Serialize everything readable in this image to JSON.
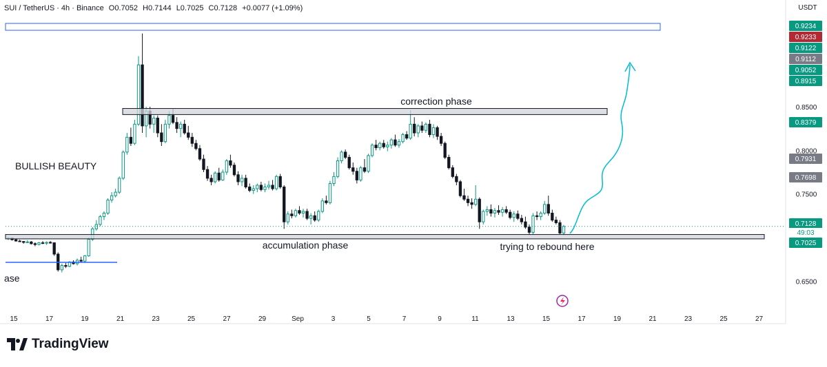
{
  "header": {
    "symbol": "SUI / TetherUS · 4h · Binance",
    "open": "O0.7052",
    "high": "H0.7144",
    "low": "L0.7025",
    "close": "C0.7128",
    "change": "+0.0077 (+1.09%)"
  },
  "brand": {
    "name": "TradingView",
    "icon": "tradingview-logo-icon"
  },
  "chart_data": {
    "type": "candlestick",
    "currency": "USDT",
    "x_axis_ticks": [
      "15",
      "17",
      "19",
      "21",
      "23",
      "25",
      "27",
      "29",
      "Sep",
      "3",
      "5",
      "7",
      "9",
      "11",
      "13",
      "15",
      "17",
      "19",
      "21",
      "23",
      "25",
      "27"
    ],
    "y_axis_ticks": [
      "0.8500",
      "0.8000",
      "0.7500",
      "0.6500"
    ],
    "ylim": [
      0.625,
      0.955
    ],
    "price_tags": [
      {
        "value": "0.9234",
        "color": "#089981"
      },
      {
        "value": "0.9233",
        "color": "#b22833"
      },
      {
        "value": "0.9122",
        "color": "#089981"
      },
      {
        "value": "0.9112",
        "color": "#787b86"
      },
      {
        "value": "0.9052",
        "color": "#089981"
      },
      {
        "value": "0.8915",
        "color": "#089981"
      },
      {
        "value": "0.8379",
        "color": "#089981"
      },
      {
        "value": "0.7931",
        "color": "#787b86"
      },
      {
        "value": "0.7698",
        "color": "#787b86"
      },
      {
        "value": "0.7128",
        "color": "#089981"
      },
      {
        "value": "49:03",
        "color": "#089981"
      },
      {
        "value": "0.7025",
        "color": "#089981"
      }
    ],
    "zones": [
      {
        "label": "correction phase",
        "low": 0.841,
        "high": 0.848
      },
      {
        "label": "accumulation phase",
        "low": 0.6985,
        "high": 0.7035
      },
      {
        "label": "trying to rebound here",
        "low": 0.6985,
        "high": 0.7035
      }
    ],
    "annotations": [
      "BULLISH BEAUTY",
      "ase",
      "correction phase",
      "accumulation phase",
      "trying to rebound here"
    ],
    "candles": [
      [
        0.699,
        0.701,
        0.697,
        0.6995
      ],
      [
        0.6995,
        0.7,
        0.6965,
        0.6975
      ],
      [
        0.6975,
        0.699,
        0.6955,
        0.696
      ],
      [
        0.696,
        0.6975,
        0.695,
        0.6955
      ],
      [
        0.6955,
        0.696,
        0.693,
        0.6945
      ],
      [
        0.6945,
        0.697,
        0.6935,
        0.695
      ],
      [
        0.695,
        0.696,
        0.692,
        0.693
      ],
      [
        0.693,
        0.6945,
        0.69,
        0.692
      ],
      [
        0.692,
        0.695,
        0.691,
        0.694
      ],
      [
        0.694,
        0.696,
        0.6925,
        0.6935
      ],
      [
        0.6935,
        0.6955,
        0.6915,
        0.6945
      ],
      [
        0.6945,
        0.696,
        0.693,
        0.694
      ],
      [
        0.694,
        0.6945,
        0.679,
        0.681
      ],
      [
        0.681,
        0.683,
        0.661,
        0.663
      ],
      [
        0.663,
        0.67,
        0.66,
        0.668
      ],
      [
        0.668,
        0.671,
        0.665,
        0.667
      ],
      [
        0.667,
        0.673,
        0.666,
        0.672
      ],
      [
        0.672,
        0.674,
        0.669,
        0.67
      ],
      [
        0.67,
        0.676,
        0.668,
        0.674
      ],
      [
        0.674,
        0.678,
        0.672,
        0.673
      ],
      [
        0.673,
        0.68,
        0.671,
        0.679
      ],
      [
        0.679,
        0.7,
        0.678,
        0.698
      ],
      [
        0.698,
        0.712,
        0.696,
        0.71
      ],
      [
        0.71,
        0.72,
        0.708,
        0.715
      ],
      [
        0.715,
        0.726,
        0.713,
        0.724
      ],
      [
        0.724,
        0.73,
        0.72,
        0.728
      ],
      [
        0.728,
        0.745,
        0.726,
        0.743
      ],
      [
        0.743,
        0.752,
        0.74,
        0.748
      ],
      [
        0.748,
        0.756,
        0.746,
        0.752
      ],
      [
        0.752,
        0.77,
        0.75,
        0.768
      ],
      [
        0.768,
        0.8,
        0.766,
        0.798
      ],
      [
        0.798,
        0.82,
        0.795,
        0.815
      ],
      [
        0.815,
        0.826,
        0.805,
        0.808
      ],
      [
        0.808,
        0.835,
        0.806,
        0.83
      ],
      [
        0.83,
        0.908,
        0.828,
        0.898
      ],
      [
        0.898,
        0.934,
        0.82,
        0.828
      ],
      [
        0.828,
        0.85,
        0.815,
        0.845
      ],
      [
        0.845,
        0.85,
        0.825,
        0.83
      ],
      [
        0.83,
        0.84,
        0.82,
        0.837
      ],
      [
        0.837,
        0.84,
        0.815,
        0.82
      ],
      [
        0.82,
        0.83,
        0.805,
        0.81
      ],
      [
        0.81,
        0.835,
        0.808,
        0.83
      ],
      [
        0.83,
        0.845,
        0.825,
        0.84
      ],
      [
        0.84,
        0.848,
        0.83,
        0.832
      ],
      [
        0.832,
        0.838,
        0.82,
        0.825
      ],
      [
        0.825,
        0.833,
        0.815,
        0.83
      ],
      [
        0.83,
        0.835,
        0.818,
        0.82
      ],
      [
        0.82,
        0.828,
        0.812,
        0.815
      ],
      [
        0.815,
        0.82,
        0.804,
        0.808
      ],
      [
        0.808,
        0.812,
        0.8,
        0.802
      ],
      [
        0.802,
        0.806,
        0.788,
        0.79
      ],
      [
        0.79,
        0.795,
        0.775,
        0.778
      ],
      [
        0.778,
        0.782,
        0.765,
        0.768
      ],
      [
        0.768,
        0.772,
        0.76,
        0.764
      ],
      [
        0.764,
        0.776,
        0.762,
        0.774
      ],
      [
        0.774,
        0.78,
        0.764,
        0.766
      ],
      [
        0.766,
        0.778,
        0.765,
        0.775
      ],
      [
        0.775,
        0.79,
        0.772,
        0.788
      ],
      [
        0.788,
        0.795,
        0.78,
        0.783
      ],
      [
        0.783,
        0.786,
        0.77,
        0.772
      ],
      [
        0.772,
        0.776,
        0.76,
        0.764
      ],
      [
        0.764,
        0.772,
        0.759,
        0.768
      ],
      [
        0.768,
        0.772,
        0.756,
        0.758
      ],
      [
        0.758,
        0.762,
        0.752,
        0.754
      ],
      [
        0.754,
        0.76,
        0.75,
        0.756
      ],
      [
        0.756,
        0.762,
        0.752,
        0.76
      ],
      [
        0.76,
        0.764,
        0.753,
        0.755
      ],
      [
        0.755,
        0.762,
        0.752,
        0.758
      ],
      [
        0.758,
        0.765,
        0.755,
        0.76
      ],
      [
        0.76,
        0.766,
        0.754,
        0.756
      ],
      [
        0.756,
        0.772,
        0.754,
        0.77
      ],
      [
        0.77,
        0.773,
        0.756,
        0.758
      ],
      [
        0.758,
        0.76,
        0.71,
        0.718
      ],
      [
        0.718,
        0.73,
        0.715,
        0.727
      ],
      [
        0.727,
        0.732,
        0.722,
        0.725
      ],
      [
        0.725,
        0.733,
        0.723,
        0.731
      ],
      [
        0.731,
        0.736,
        0.726,
        0.728
      ],
      [
        0.728,
        0.733,
        0.723,
        0.73
      ],
      [
        0.73,
        0.733,
        0.72,
        0.722
      ],
      [
        0.722,
        0.728,
        0.715,
        0.725
      ],
      [
        0.725,
        0.73,
        0.718,
        0.72
      ],
      [
        0.72,
        0.732,
        0.718,
        0.73
      ],
      [
        0.73,
        0.745,
        0.728,
        0.742
      ],
      [
        0.742,
        0.748,
        0.738,
        0.74
      ],
      [
        0.74,
        0.765,
        0.738,
        0.762
      ],
      [
        0.762,
        0.775,
        0.759,
        0.77
      ],
      [
        0.77,
        0.792,
        0.768,
        0.788
      ],
      [
        0.788,
        0.8,
        0.785,
        0.798
      ],
      [
        0.798,
        0.801,
        0.79,
        0.792
      ],
      [
        0.792,
        0.795,
        0.778,
        0.78
      ],
      [
        0.78,
        0.786,
        0.772,
        0.776
      ],
      [
        0.776,
        0.78,
        0.762,
        0.766
      ],
      [
        0.766,
        0.782,
        0.764,
        0.78
      ],
      [
        0.78,
        0.79,
        0.774,
        0.776
      ],
      [
        0.776,
        0.796,
        0.774,
        0.794
      ],
      [
        0.794,
        0.808,
        0.792,
        0.806
      ],
      [
        0.806,
        0.812,
        0.8,
        0.803
      ],
      [
        0.803,
        0.81,
        0.8,
        0.808
      ],
      [
        0.808,
        0.812,
        0.802,
        0.804
      ],
      [
        0.804,
        0.81,
        0.799,
        0.806
      ],
      [
        0.806,
        0.814,
        0.802,
        0.812
      ],
      [
        0.812,
        0.818,
        0.804,
        0.806
      ],
      [
        0.806,
        0.813,
        0.803,
        0.81
      ],
      [
        0.81,
        0.82,
        0.808,
        0.818
      ],
      [
        0.818,
        0.822,
        0.812,
        0.814
      ],
      [
        0.814,
        0.846,
        0.812,
        0.83
      ],
      [
        0.83,
        0.838,
        0.816,
        0.82
      ],
      [
        0.82,
        0.83,
        0.815,
        0.828
      ],
      [
        0.828,
        0.833,
        0.82,
        0.823
      ],
      [
        0.823,
        0.832,
        0.82,
        0.83
      ],
      [
        0.83,
        0.835,
        0.815,
        0.818
      ],
      [
        0.818,
        0.83,
        0.814,
        0.826
      ],
      [
        0.826,
        0.828,
        0.812,
        0.816
      ],
      [
        0.816,
        0.82,
        0.805,
        0.808
      ],
      [
        0.808,
        0.81,
        0.79,
        0.792
      ],
      [
        0.792,
        0.795,
        0.778,
        0.78
      ],
      [
        0.78,
        0.783,
        0.768,
        0.77
      ],
      [
        0.77,
        0.773,
        0.76,
        0.764
      ],
      [
        0.764,
        0.766,
        0.746,
        0.748
      ],
      [
        0.748,
        0.756,
        0.742,
        0.744
      ],
      [
        0.744,
        0.748,
        0.736,
        0.74
      ],
      [
        0.74,
        0.745,
        0.733,
        0.738
      ],
      [
        0.738,
        0.76,
        0.736,
        0.744
      ],
      [
        0.744,
        0.746,
        0.71,
        0.718
      ],
      [
        0.718,
        0.732,
        0.715,
        0.73
      ],
      [
        0.73,
        0.736,
        0.725,
        0.732
      ],
      [
        0.732,
        0.738,
        0.724,
        0.728
      ],
      [
        0.728,
        0.734,
        0.723,
        0.731
      ],
      [
        0.731,
        0.737,
        0.726,
        0.729
      ],
      [
        0.729,
        0.735,
        0.724,
        0.732
      ],
      [
        0.732,
        0.736,
        0.727,
        0.729
      ],
      [
        0.729,
        0.732,
        0.721,
        0.723
      ],
      [
        0.723,
        0.73,
        0.718,
        0.727
      ],
      [
        0.727,
        0.731,
        0.72,
        0.722
      ],
      [
        0.722,
        0.726,
        0.715,
        0.718
      ],
      [
        0.718,
        0.724,
        0.71,
        0.712
      ],
      [
        0.712,
        0.715,
        0.703,
        0.706
      ],
      [
        0.706,
        0.728,
        0.704,
        0.725
      ],
      [
        0.725,
        0.73,
        0.72,
        0.724
      ],
      [
        0.724,
        0.73,
        0.72,
        0.728
      ],
      [
        0.728,
        0.742,
        0.726,
        0.738
      ],
      [
        0.738,
        0.748,
        0.725,
        0.728
      ],
      [
        0.728,
        0.732,
        0.718,
        0.72
      ],
      [
        0.72,
        0.724,
        0.715,
        0.717
      ],
      [
        0.717,
        0.72,
        0.704,
        0.7052
      ],
      [
        0.7052,
        0.7144,
        0.7025,
        0.7128
      ]
    ]
  }
}
